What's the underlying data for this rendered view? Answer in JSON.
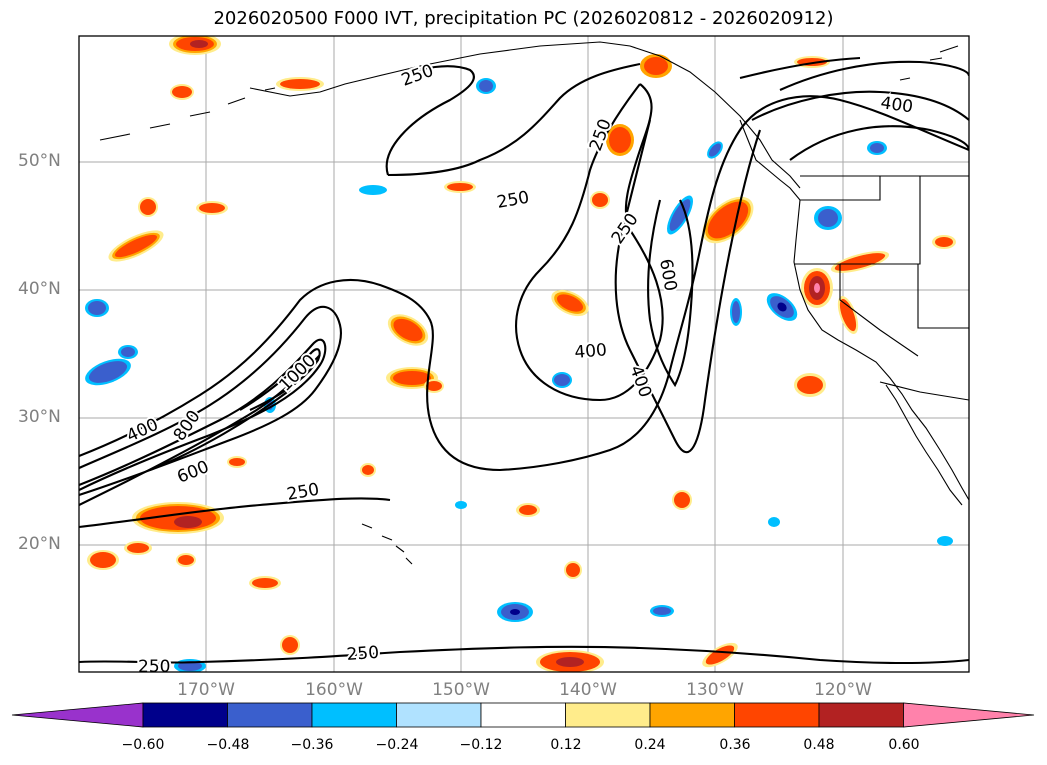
{
  "title": "2026020500 F000 IVT, precipitation PC (2026020812 - 2026020912)",
  "lat_labels": [
    "50°N",
    "40°N",
    "30°N",
    "20°N"
  ],
  "lon_labels": [
    "170°W",
    "160°W",
    "150°W",
    "140°W",
    "130°W",
    "120°W"
  ],
  "contour_labels": [
    "250",
    "250",
    "250",
    "250",
    "250",
    "250",
    "250",
    "400",
    "400",
    "400",
    "400",
    "600",
    "600",
    "800",
    "1000"
  ],
  "colorbar": {
    "ticks": [
      "−0.60",
      "−0.48",
      "−0.36",
      "−0.24",
      "−0.12",
      "0.12",
      "0.24",
      "0.36",
      "0.48",
      "0.60"
    ],
    "colors": [
      "#9932CC",
      "#00008B",
      "#3A5FCD",
      "#00BFFF",
      "#B0E2FF",
      "#FFFFFF",
      "#FFEC8B",
      "#FFA500",
      "#FF4500",
      "#B22222",
      "#FF82AB"
    ]
  },
  "colors": {
    "contour": "#000000",
    "grid": "#aaaaaa",
    "orange": "#FF4500",
    "orange_ring": "#FFA500",
    "yellow_ring": "#FFEC8B",
    "red_core": "#B22222",
    "blue": "#3A5FCD",
    "light_blue": "#00BFFF",
    "dark_blue": "#00008B",
    "pink": "#FF82AB"
  }
}
